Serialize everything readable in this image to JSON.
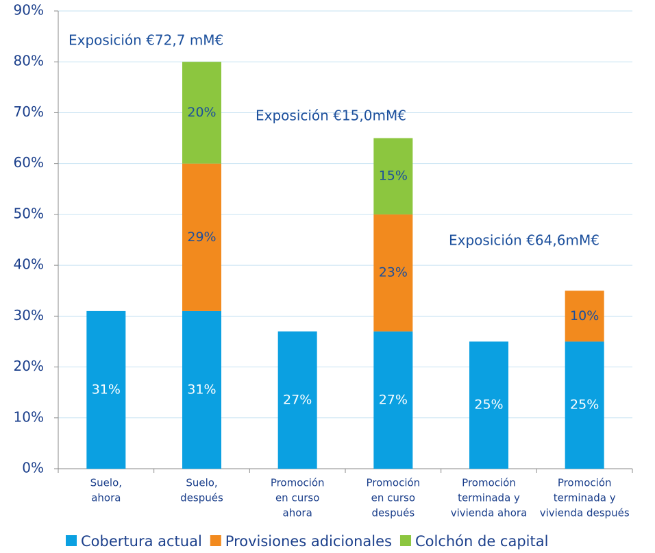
{
  "chart_data": {
    "type": "stacked-bar",
    "categories": [
      [
        "Suelo,",
        "ahora"
      ],
      [
        "Suelo,",
        "después"
      ],
      [
        "Promoción",
        "en curso",
        "ahora"
      ],
      [
        "Promoción",
        "en curso",
        "después"
      ],
      [
        "Promoción",
        "terminada y",
        "vivienda ahora"
      ],
      [
        "Promoción",
        "terminada y",
        "vivienda después"
      ]
    ],
    "series": [
      {
        "name": "Cobertura actual",
        "color": "#0ba0e1",
        "values": [
          31,
          31,
          27,
          27,
          25,
          25
        ],
        "value_labels": [
          "31%",
          "31%",
          "27%",
          "27%",
          "25%",
          "25%"
        ]
      },
      {
        "name": "Provisiones adicionales",
        "color": "#f28a1e",
        "values": [
          null,
          29,
          null,
          23,
          null,
          10
        ],
        "value_labels": [
          null,
          "29%",
          null,
          "23%",
          null,
          "10%"
        ]
      },
      {
        "name": "Colchón de capital",
        "color": "#8cc63f",
        "values": [
          null,
          20,
          null,
          15,
          null,
          null
        ],
        "value_labels": [
          null,
          "20%",
          null,
          "15%",
          null,
          null
        ]
      }
    ],
    "annotations": [
      "Exposición €72,7 mM€",
      "Exposición €15,0mM€",
      "Exposición €64,6mM€"
    ],
    "ylim": [
      0,
      90
    ],
    "yticks": [
      {
        "value": 0,
        "label": "0%"
      },
      {
        "value": 10,
        "label": "10%"
      },
      {
        "value": 20,
        "label": "20%"
      },
      {
        "value": 30,
        "label": "30%"
      },
      {
        "value": 40,
        "label": "40%"
      },
      {
        "value": 50,
        "label": "50%"
      },
      {
        "value": 60,
        "label": "60%"
      },
      {
        "value": 70,
        "label": "70%"
      },
      {
        "value": 80,
        "label": "80%"
      },
      {
        "value": 90,
        "label": "90%"
      }
    ],
    "grid": true
  }
}
